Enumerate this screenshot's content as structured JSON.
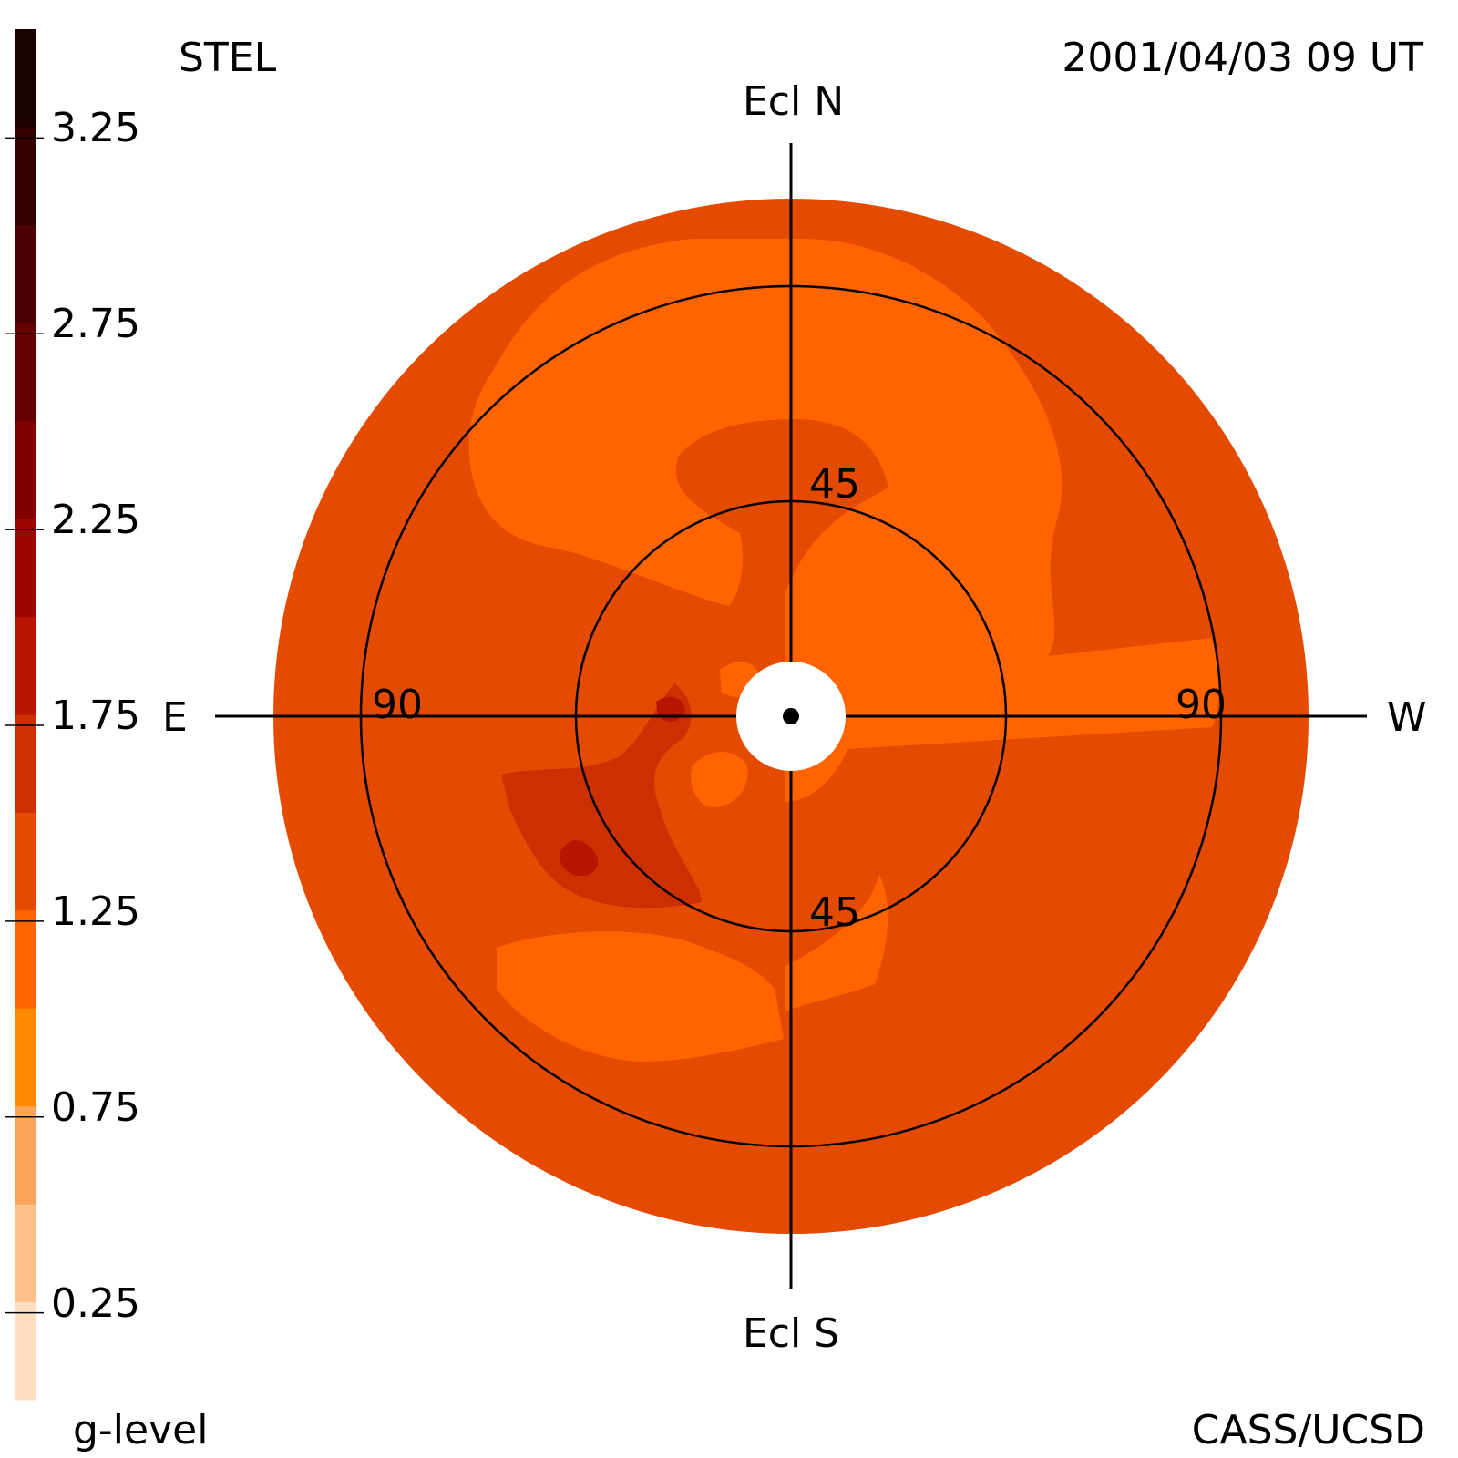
{
  "header": {
    "instrument": "STEL",
    "timestamp": "2001/04/03 09 UT"
  },
  "footer": {
    "colorbar_label": "g-level",
    "credit": "CASS/UCSD"
  },
  "directions": {
    "north": "Ecl N",
    "south": "Ecl S",
    "east": "E",
    "west": "W"
  },
  "ring_labels": {
    "inner_top": "45",
    "inner_bottom": "45",
    "outer_left": "90",
    "outer_right": "90"
  },
  "chart_data": {
    "type": "heatmap",
    "projection": "fisheye sky map centered on the Sun",
    "rings_deg": [
      45,
      90
    ],
    "colorbar": {
      "min": 0,
      "max": 3.5,
      "ticks": [
        "3.25",
        "2.75",
        "2.25",
        "1.75",
        "1.25",
        "0.75",
        "0.25"
      ],
      "tick_values": [
        3.25,
        2.75,
        2.25,
        1.75,
        1.25,
        0.75,
        0.25
      ],
      "levels": [
        {
          "from": 0.0,
          "to": 0.25,
          "color": "#ffdfc2"
        },
        {
          "from": 0.25,
          "to": 0.5,
          "color": "#fdc089"
        },
        {
          "from": 0.5,
          "to": 0.75,
          "color": "#fba35a"
        },
        {
          "from": 0.75,
          "to": 1.0,
          "color": "#ff8a00"
        },
        {
          "from": 1.0,
          "to": 1.25,
          "color": "#ff6400"
        },
        {
          "from": 1.25,
          "to": 1.5,
          "color": "#e54b00"
        },
        {
          "from": 1.5,
          "to": 1.75,
          "color": "#cc3000"
        },
        {
          "from": 1.75,
          "to": 2.0,
          "color": "#b81400"
        },
        {
          "from": 2.0,
          "to": 2.25,
          "color": "#9e0500"
        },
        {
          "from": 2.25,
          "to": 2.5,
          "color": "#800000"
        },
        {
          "from": 2.5,
          "to": 2.75,
          "color": "#660000"
        },
        {
          "from": 2.75,
          "to": 3.0,
          "color": "#4d0000"
        },
        {
          "from": 3.0,
          "to": 3.25,
          "color": "#330000"
        },
        {
          "from": 3.25,
          "to": 3.5,
          "color": "#1a0000"
        }
      ]
    },
    "dominant_level": 1.35,
    "regions": [
      {
        "name": "outer background",
        "level": 1.35
      },
      {
        "name": "north-east enhancement",
        "level": 1.1
      },
      {
        "name": "north-west enhancement",
        "level": 1.1
      },
      {
        "name": "south-east enhancement",
        "level": 1.1
      },
      {
        "name": "east streamer",
        "level": 1.6
      },
      {
        "name": "east streamer core",
        "level": 1.9
      }
    ],
    "occulter": "white disk at Sun center"
  }
}
